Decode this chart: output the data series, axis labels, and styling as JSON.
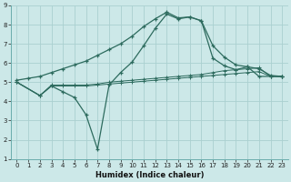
{
  "xlabel": "Humidex (Indice chaleur)",
  "bg_color": "#cce8e8",
  "grid_color": "#aad0d0",
  "line_color": "#2d6b5e",
  "xlim": [
    -0.5,
    23.5
  ],
  "ylim": [
    1,
    9
  ],
  "xticks": [
    0,
    1,
    2,
    3,
    4,
    5,
    6,
    7,
    8,
    9,
    10,
    11,
    12,
    13,
    14,
    15,
    16,
    17,
    18,
    19,
    20,
    21,
    22,
    23
  ],
  "yticks": [
    1,
    2,
    3,
    4,
    5,
    6,
    7,
    8,
    9
  ],
  "series": {
    "arc_x": [
      0,
      1,
      2,
      3,
      4,
      5,
      6,
      7,
      8,
      9,
      10,
      11,
      12,
      13,
      14,
      15,
      16,
      17,
      18,
      19,
      20,
      21,
      22,
      23
    ],
    "arc_y": [
      5.1,
      5.2,
      5.3,
      5.5,
      5.7,
      5.9,
      6.1,
      6.4,
      6.7,
      7.0,
      7.4,
      7.9,
      8.3,
      8.65,
      8.35,
      8.4,
      8.2,
      6.9,
      6.3,
      5.9,
      5.8,
      5.7,
      5.35,
      5.3
    ],
    "dip_x": [
      0,
      2,
      3,
      4,
      5,
      6,
      7,
      8,
      9,
      10,
      11,
      12,
      13,
      14,
      15,
      16,
      17,
      18,
      19,
      20,
      21,
      22,
      23
    ],
    "dip_y": [
      5.0,
      4.3,
      4.8,
      4.5,
      4.2,
      3.3,
      1.5,
      4.85,
      5.5,
      6.05,
      6.9,
      7.8,
      8.55,
      8.3,
      8.4,
      8.2,
      6.25,
      5.85,
      5.65,
      5.8,
      5.3,
      5.3,
      5.3
    ],
    "flat1_x": [
      0,
      2,
      3,
      4,
      5,
      6,
      7,
      8,
      9,
      10,
      11,
      12,
      13,
      14,
      15,
      16,
      17,
      18,
      19,
      20,
      21,
      22,
      23
    ],
    "flat1_y": [
      5.0,
      4.3,
      4.85,
      4.85,
      4.85,
      4.85,
      4.9,
      5.0,
      5.05,
      5.1,
      5.15,
      5.2,
      5.25,
      5.3,
      5.35,
      5.4,
      5.5,
      5.6,
      5.65,
      5.7,
      5.75,
      5.3,
      5.3
    ],
    "flat2_x": [
      0,
      2,
      3,
      4,
      5,
      6,
      7,
      8,
      9,
      10,
      11,
      12,
      13,
      14,
      15,
      16,
      17,
      18,
      19,
      20,
      21,
      22,
      23
    ],
    "flat2_y": [
      5.0,
      4.3,
      4.8,
      4.8,
      4.8,
      4.8,
      4.85,
      4.9,
      4.95,
      5.0,
      5.05,
      5.1,
      5.15,
      5.2,
      5.25,
      5.3,
      5.35,
      5.4,
      5.45,
      5.5,
      5.55,
      5.3,
      5.3
    ]
  }
}
